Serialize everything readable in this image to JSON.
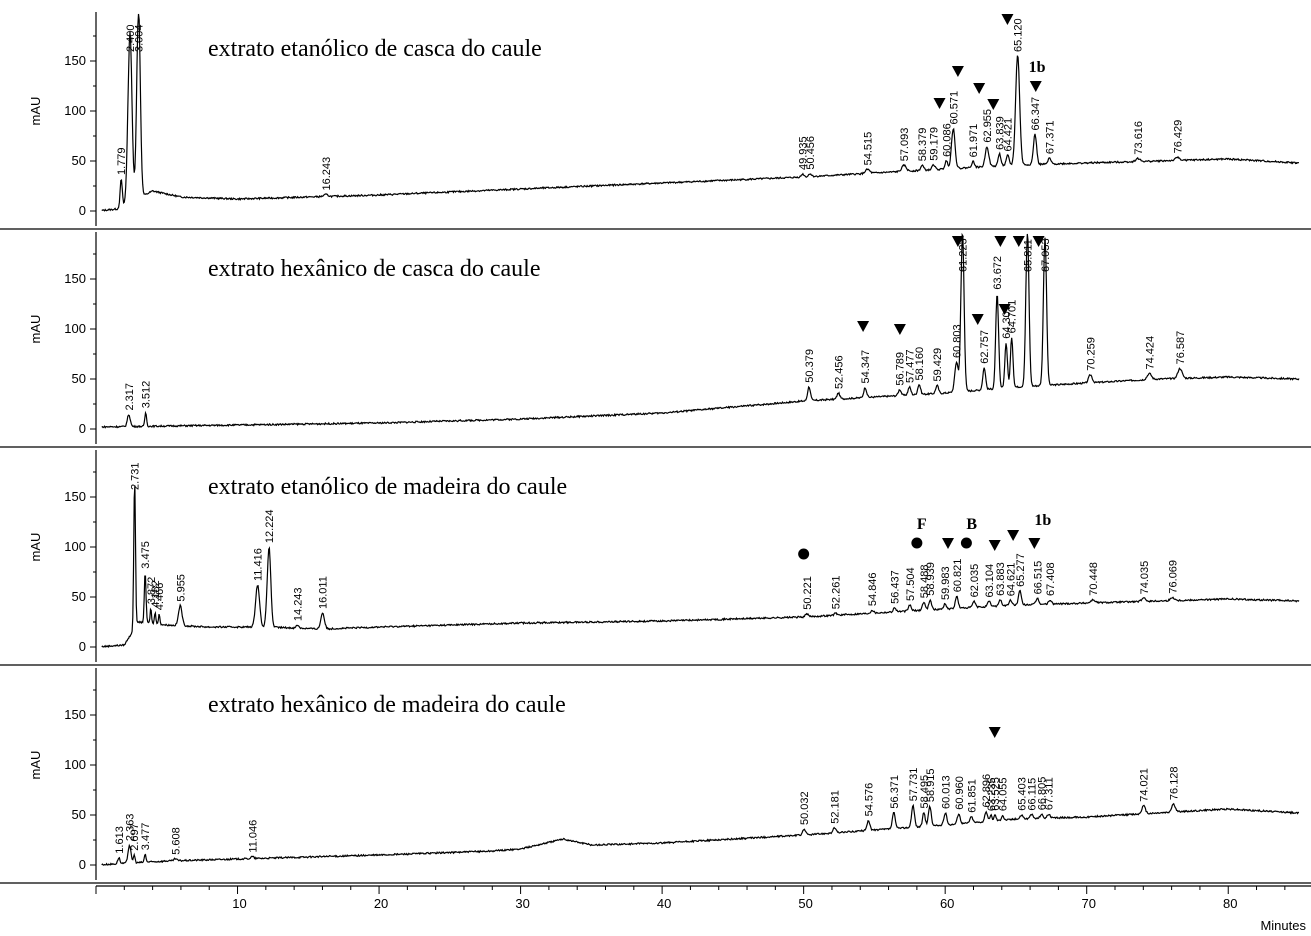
{
  "chart_data": [
    {
      "type": "line",
      "title": "extrato etanólico de casca do caule",
      "ylabel": "mAU",
      "yticks": [
        "0",
        "50",
        "100",
        "150"
      ],
      "ylim": [
        -15,
        195
      ],
      "baseline": [
        [
          0,
          0
        ],
        [
          1.5,
          2
        ],
        [
          4,
          20
        ],
        [
          6,
          14
        ],
        [
          10,
          12
        ],
        [
          20,
          16
        ],
        [
          30,
          22
        ],
        [
          40,
          28
        ],
        [
          50,
          34
        ],
        [
          55,
          38
        ],
        [
          60,
          42
        ],
        [
          65,
          46
        ],
        [
          70,
          48
        ],
        [
          75,
          50
        ],
        [
          80,
          52
        ],
        [
          85,
          48
        ]
      ],
      "peaks": [
        {
          "rt": 1.779,
          "label": "1.779",
          "height": 28,
          "width": 0.15
        },
        {
          "rt": 2.4,
          "label": "2.400",
          "height": 170,
          "width": 0.28
        },
        {
          "rt": 3.004,
          "label": "3.004",
          "height": 190,
          "width": 0.25
        },
        {
          "rt": 16.243,
          "label": "16.243",
          "height": 2,
          "width": 0.3
        },
        {
          "rt": 49.935,
          "label": "49.935",
          "height": 3,
          "width": 0.2
        },
        {
          "rt": 50.456,
          "label": "50.456",
          "height": 3,
          "width": 0.2
        },
        {
          "rt": 54.515,
          "label": "54.515",
          "height": 4,
          "width": 0.3
        },
        {
          "rt": 57.093,
          "label": "57.093",
          "height": 6,
          "width": 0.3
        },
        {
          "rt": 58.379,
          "label": "58.379",
          "height": 5,
          "width": 0.2
        },
        {
          "rt": 59.179,
          "label": "59.179",
          "height": 5,
          "width": 0.2
        },
        {
          "rt": 60.086,
          "label": "60.086",
          "height": 8,
          "width": 0.2
        },
        {
          "rt": 60.571,
          "label": "60.571",
          "height": 40,
          "width": 0.25
        },
        {
          "rt": 61.971,
          "label": "61.971",
          "height": 6,
          "width": 0.2
        },
        {
          "rt": 62.955,
          "label": "62.955",
          "height": 20,
          "width": 0.25
        },
        {
          "rt": 63.839,
          "label": "63.839",
          "height": 12,
          "width": 0.2
        },
        {
          "rt": 64.421,
          "label": "64.421",
          "height": 10,
          "width": 0.2
        },
        {
          "rt": 65.12,
          "label": "65.120",
          "height": 110,
          "width": 0.28
        },
        {
          "rt": 66.347,
          "label": "66.347",
          "height": 30,
          "width": 0.22
        },
        {
          "rt": 67.371,
          "label": "67.371",
          "height": 6,
          "width": 0.2
        },
        {
          "rt": 73.616,
          "label": "73.616",
          "height": 3,
          "width": 0.3
        },
        {
          "rt": 76.429,
          "label": "76.429",
          "height": 3,
          "width": 0.3
        }
      ],
      "markers": [
        {
          "rt": 60.9,
          "y": 140,
          "symbol": "triangle",
          "text": ""
        },
        {
          "rt": 59.6,
          "y": 108,
          "symbol": "triangle",
          "text": ""
        },
        {
          "rt": 62.4,
          "y": 123,
          "symbol": "triangle",
          "text": ""
        },
        {
          "rt": 63.4,
          "y": 107,
          "symbol": "triangle",
          "text": ""
        },
        {
          "rt": 64.4,
          "y": 192,
          "symbol": "triangle",
          "text": ""
        },
        {
          "rt": 66.4,
          "y": 125,
          "symbol": "triangle",
          "text": ""
        },
        {
          "rt": 65.9,
          "y": 139,
          "symbol": "text",
          "text": "1b"
        }
      ]
    },
    {
      "type": "line",
      "title": "extrato hexânico de casca do caule",
      "ylabel": "mAU",
      "yticks": [
        "0",
        "50",
        "100",
        "150"
      ],
      "ylim": [
        -15,
        195
      ],
      "baseline": [
        [
          0,
          2
        ],
        [
          5,
          3
        ],
        [
          10,
          4
        ],
        [
          20,
          6
        ],
        [
          30,
          10
        ],
        [
          40,
          16
        ],
        [
          50,
          28
        ],
        [
          55,
          32
        ],
        [
          60,
          36
        ],
        [
          65,
          42
        ],
        [
          70,
          46
        ],
        [
          75,
          50
        ],
        [
          80,
          52
        ],
        [
          85,
          50
        ]
      ],
      "peaks": [
        {
          "rt": 2.317,
          "label": "2.317",
          "height": 12,
          "width": 0.2
        },
        {
          "rt": 3.512,
          "label": "3.512",
          "height": 14,
          "width": 0.12
        },
        {
          "rt": 50.379,
          "label": "50.379",
          "height": 14,
          "width": 0.2
        },
        {
          "rt": 52.456,
          "label": "52.456",
          "height": 6,
          "width": 0.2
        },
        {
          "rt": 54.347,
          "label": "54.347",
          "height": 10,
          "width": 0.2
        },
        {
          "rt": 56.789,
          "label": "56.789",
          "height": 6,
          "width": 0.2
        },
        {
          "rt": 57.477,
          "label": "57.477",
          "height": 8,
          "width": 0.2
        },
        {
          "rt": 58.16,
          "label": "58.160",
          "height": 10,
          "width": 0.2
        },
        {
          "rt": 59.429,
          "label": "59.429",
          "height": 8,
          "width": 0.2
        },
        {
          "rt": 60.803,
          "label": "60.803",
          "height": 30,
          "width": 0.25
        },
        {
          "rt": 61.223,
          "label": "61.223",
          "height": 160,
          "width": 0.22
        },
        {
          "rt": 62.757,
          "label": "62.757",
          "height": 22,
          "width": 0.2
        },
        {
          "rt": 63.672,
          "label": "63.672",
          "height": 95,
          "width": 0.2
        },
        {
          "rt": 64.307,
          "label": "64.307",
          "height": 45,
          "width": 0.18
        },
        {
          "rt": 64.701,
          "label": "64.701",
          "height": 50,
          "width": 0.18
        },
        {
          "rt": 65.811,
          "label": "65.811",
          "height": 155,
          "width": 0.22
        },
        {
          "rt": 67.053,
          "label": "67.053",
          "height": 148,
          "width": 0.22
        },
        {
          "rt": 70.259,
          "label": "70.259",
          "height": 8,
          "width": 0.25
        },
        {
          "rt": 74.424,
          "label": "74.424",
          "height": 6,
          "width": 0.3
        },
        {
          "rt": 76.587,
          "label": "76.587",
          "height": 10,
          "width": 0.3
        }
      ],
      "markers": [
        {
          "rt": 54.2,
          "y": 103,
          "symbol": "triangle",
          "text": ""
        },
        {
          "rt": 56.8,
          "y": 100,
          "symbol": "triangle",
          "text": ""
        },
        {
          "rt": 60.9,
          "y": 188,
          "symbol": "triangle",
          "text": ""
        },
        {
          "rt": 62.3,
          "y": 110,
          "symbol": "triangle",
          "text": ""
        },
        {
          "rt": 63.9,
          "y": 188,
          "symbol": "triangle",
          "text": ""
        },
        {
          "rt": 64.2,
          "y": 120,
          "symbol": "triangle",
          "text": ""
        },
        {
          "rt": 65.2,
          "y": 188,
          "symbol": "triangle",
          "text": ""
        },
        {
          "rt": 66.6,
          "y": 188,
          "symbol": "triangle",
          "text": ""
        }
      ]
    },
    {
      "type": "line",
      "title": "extrato etanólico de madeira do caule",
      "ylabel": "mAU",
      "yticks": [
        "0",
        "50",
        "100",
        "150"
      ],
      "ylim": [
        -15,
        195
      ],
      "baseline": [
        [
          0,
          0
        ],
        [
          2,
          2
        ],
        [
          3,
          25
        ],
        [
          5,
          22
        ],
        [
          8,
          20
        ],
        [
          12,
          20
        ],
        [
          16,
          18
        ],
        [
          20,
          20
        ],
        [
          30,
          24
        ],
        [
          40,
          26
        ],
        [
          50,
          30
        ],
        [
          55,
          34
        ],
        [
          60,
          38
        ],
        [
          65,
          42
        ],
        [
          70,
          44
        ],
        [
          75,
          46
        ],
        [
          80,
          48
        ],
        [
          85,
          46
        ]
      ],
      "peaks": [
        {
          "rt": 2.731,
          "label": "2.731",
          "height": 150,
          "width": 0.12
        },
        {
          "rt": 3.475,
          "label": "3.475",
          "height": 50,
          "width": 0.12
        },
        {
          "rt": 3.872,
          "label": "3.872",
          "height": 15,
          "width": 0.1
        },
        {
          "rt": 4.182,
          "label": "4.182",
          "height": 12,
          "width": 0.1
        },
        {
          "rt": 4.466,
          "label": "4.466",
          "height": 10,
          "width": 0.1
        },
        {
          "rt": 5.955,
          "label": "5.955",
          "height": 20,
          "width": 0.25
        },
        {
          "rt": 11.416,
          "label": "11.416",
          "height": 42,
          "width": 0.28
        },
        {
          "rt": 12.224,
          "label": "12.224",
          "height": 80,
          "width": 0.25
        },
        {
          "rt": 14.243,
          "label": "14.243",
          "height": 3,
          "width": 0.2
        },
        {
          "rt": 16.011,
          "label": "16.011",
          "height": 16,
          "width": 0.25
        },
        {
          "rt": 50.221,
          "label": "50.221",
          "height": 3,
          "width": 0.2
        },
        {
          "rt": 52.261,
          "label": "52.261",
          "height": 2,
          "width": 0.2
        },
        {
          "rt": 54.846,
          "label": "54.846",
          "height": 3,
          "width": 0.2
        },
        {
          "rt": 56.437,
          "label": "56.437",
          "height": 4,
          "width": 0.2
        },
        {
          "rt": 57.504,
          "label": "57.504",
          "height": 6,
          "width": 0.2
        },
        {
          "rt": 58.488,
          "label": "58.488",
          "height": 8,
          "width": 0.2
        },
        {
          "rt": 58.939,
          "label": "58.939",
          "height": 10,
          "width": 0.2
        },
        {
          "rt": 59.983,
          "label": "59.983",
          "height": 5,
          "width": 0.2
        },
        {
          "rt": 60.821,
          "label": "60.821",
          "height": 12,
          "width": 0.2
        },
        {
          "rt": 62.035,
          "label": "62.035",
          "height": 6,
          "width": 0.2
        },
        {
          "rt": 63.104,
          "label": "63.104",
          "height": 5,
          "width": 0.2
        },
        {
          "rt": 63.883,
          "label": "63.883",
          "height": 6,
          "width": 0.2
        },
        {
          "rt": 64.621,
          "label": "64.621",
          "height": 5,
          "width": 0.2
        },
        {
          "rt": 65.277,
          "label": "65.277",
          "height": 14,
          "width": 0.2
        },
        {
          "rt": 66.515,
          "label": "66.515",
          "height": 6,
          "width": 0.2
        },
        {
          "rt": 67.408,
          "label": "67.408",
          "height": 4,
          "width": 0.2
        },
        {
          "rt": 70.448,
          "label": "70.448",
          "height": 3,
          "width": 0.3
        },
        {
          "rt": 74.035,
          "label": "74.035",
          "height": 3,
          "width": 0.3
        },
        {
          "rt": 76.069,
          "label": "76.069",
          "height": 3,
          "width": 0.3
        }
      ],
      "markers": [
        {
          "rt": 50.0,
          "y": 93,
          "symbol": "circle",
          "text": ""
        },
        {
          "rt": 58.0,
          "y": 104,
          "symbol": "circle",
          "text": ""
        },
        {
          "rt": 58.0,
          "y": 118,
          "symbol": "text",
          "text": "F"
        },
        {
          "rt": 61.5,
          "y": 104,
          "symbol": "circle",
          "text": ""
        },
        {
          "rt": 61.5,
          "y": 118,
          "symbol": "text",
          "text": "B"
        },
        {
          "rt": 60.2,
          "y": 104,
          "symbol": "triangle",
          "text": ""
        },
        {
          "rt": 63.5,
          "y": 102,
          "symbol": "triangle",
          "text": ""
        },
        {
          "rt": 64.8,
          "y": 112,
          "symbol": "triangle",
          "text": ""
        },
        {
          "rt": 66.3,
          "y": 104,
          "symbol": "triangle",
          "text": ""
        },
        {
          "rt": 66.3,
          "y": 122,
          "symbol": "text",
          "text": "1b"
        }
      ]
    },
    {
      "type": "line",
      "title": "extrato hexânico de madeira do caule",
      "ylabel": "mAU",
      "yticks": [
        "0",
        "50",
        "100",
        "150"
      ],
      "ylim": [
        -15,
        195
      ],
      "baseline": [
        [
          0,
          0
        ],
        [
          5,
          4
        ],
        [
          10,
          6
        ],
        [
          20,
          10
        ],
        [
          28,
          14
        ],
        [
          30,
          16
        ],
        [
          33,
          26
        ],
        [
          35,
          20
        ],
        [
          40,
          22
        ],
        [
          50,
          30
        ],
        [
          55,
          35
        ],
        [
          60,
          40
        ],
        [
          65,
          46
        ],
        [
          70,
          48
        ],
        [
          75,
          52
        ],
        [
          80,
          56
        ],
        [
          85,
          52
        ]
      ],
      "peaks": [
        {
          "rt": 1.613,
          "label": "1.613",
          "height": 6,
          "width": 0.15
        },
        {
          "rt": 2.363,
          "label": "2.363",
          "height": 18,
          "width": 0.2
        },
        {
          "rt": 2.697,
          "label": "2.697",
          "height": 8,
          "width": 0.12
        },
        {
          "rt": 3.477,
          "label": "3.477",
          "height": 8,
          "width": 0.12
        },
        {
          "rt": 5.608,
          "label": "5.608",
          "height": 2,
          "width": 0.2
        },
        {
          "rt": 11.046,
          "label": "11.046",
          "height": 2,
          "width": 0.2
        },
        {
          "rt": 50.032,
          "label": "50.032",
          "height": 6,
          "width": 0.2
        },
        {
          "rt": 52.181,
          "label": "52.181",
          "height": 5,
          "width": 0.2
        },
        {
          "rt": 54.576,
          "label": "54.576",
          "height": 10,
          "width": 0.2
        },
        {
          "rt": 56.371,
          "label": "56.371",
          "height": 16,
          "width": 0.2
        },
        {
          "rt": 57.731,
          "label": "57.731",
          "height": 22,
          "width": 0.2
        },
        {
          "rt": 58.495,
          "label": "58.495",
          "height": 14,
          "width": 0.18
        },
        {
          "rt": 58.915,
          "label": "58.915",
          "height": 20,
          "width": 0.2
        },
        {
          "rt": 60.013,
          "label": "60.013",
          "height": 12,
          "width": 0.2
        },
        {
          "rt": 60.96,
          "label": "60.960",
          "height": 10,
          "width": 0.2
        },
        {
          "rt": 61.851,
          "label": "61.851",
          "height": 6,
          "width": 0.2
        },
        {
          "rt": 62.896,
          "label": "62.896",
          "height": 10,
          "width": 0.18
        },
        {
          "rt": 63.235,
          "label": "63.235",
          "height": 6,
          "width": 0.15
        },
        {
          "rt": 63.525,
          "label": "63.525",
          "height": 6,
          "width": 0.15
        },
        {
          "rt": 64.055,
          "label": "64.055",
          "height": 5,
          "width": 0.15
        },
        {
          "rt": 65.403,
          "label": "65.403",
          "height": 4,
          "width": 0.2
        },
        {
          "rt": 66.115,
          "label": "66.115",
          "height": 4,
          "width": 0.2
        },
        {
          "rt": 66.805,
          "label": "66.805",
          "height": 4,
          "width": 0.2
        },
        {
          "rt": 67.311,
          "label": "67.311",
          "height": 4,
          "width": 0.2
        },
        {
          "rt": 74.021,
          "label": "74.021",
          "height": 8,
          "width": 0.25
        },
        {
          "rt": 76.128,
          "label": "76.128",
          "height": 8,
          "width": 0.25
        }
      ],
      "markers": [
        {
          "rt": 63.5,
          "y": 133,
          "symbol": "triangle",
          "text": ""
        }
      ]
    }
  ],
  "x_axis": {
    "xlim": [
      0,
      85
    ],
    "ticks": [
      {
        "value": 10,
        "label": "10"
      },
      {
        "value": 20,
        "label": "20"
      },
      {
        "value": 30,
        "label": "30"
      },
      {
        "value": 40,
        "label": "40"
      },
      {
        "value": 50,
        "label": "50"
      },
      {
        "value": 60,
        "label": "60"
      },
      {
        "value": 70,
        "label": "70"
      },
      {
        "value": 80,
        "label": "80"
      }
    ],
    "xlabel": "Minutes"
  }
}
